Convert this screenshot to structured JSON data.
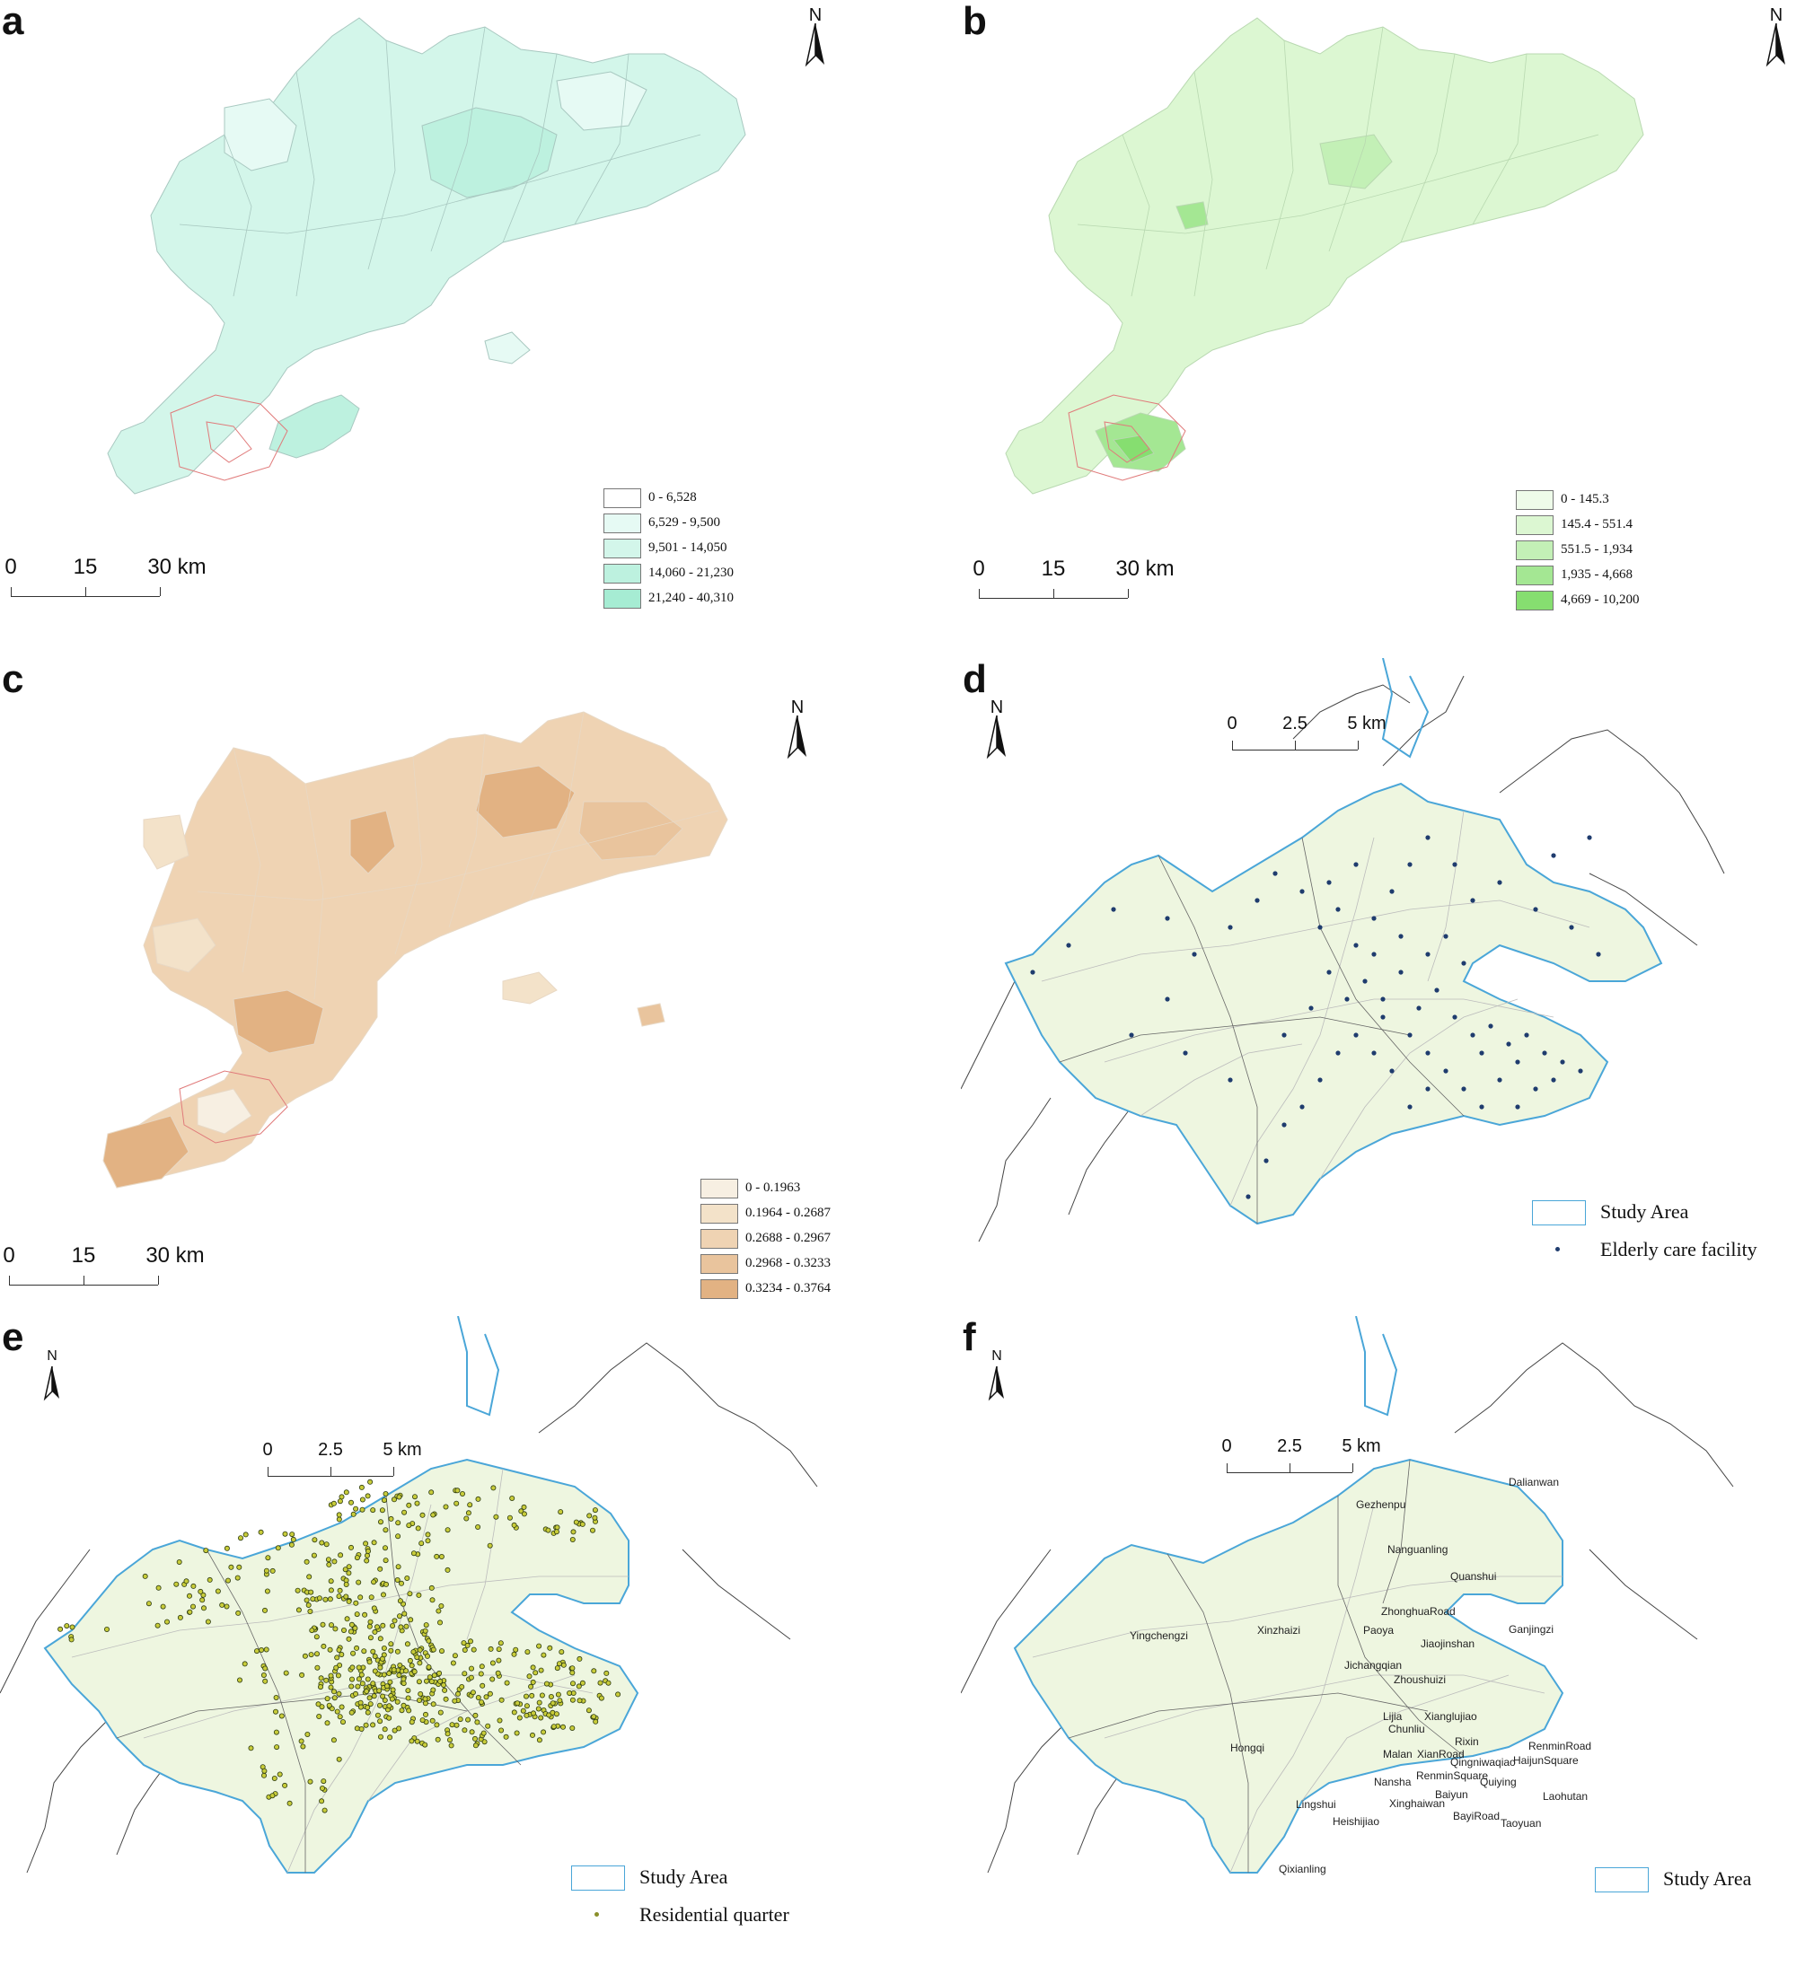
{
  "panels": [
    {
      "letter": "a",
      "north": "N",
      "scale": {
        "labels": [
          "0",
          "15",
          "30 km"
        ]
      },
      "legend": [
        {
          "label": "0 - 6,528",
          "color": "#ffffff"
        },
        {
          "label": "6,529 - 9,500",
          "color": "#e6faf4"
        },
        {
          "label": "9,501 - 14,050",
          "color": "#d3f6ea"
        },
        {
          "label": "14,060 - 21,230",
          "color": "#bdf1df"
        },
        {
          "label": "21,240 - 40,310",
          "color": "#a6ecd3"
        }
      ]
    },
    {
      "letter": "b",
      "north": "N",
      "scale": {
        "labels": [
          "0",
          "15",
          "30 km"
        ]
      },
      "legend": [
        {
          "label": "0 - 145.3",
          "color": "#eefbe9"
        },
        {
          "label": "145.4 - 551.4",
          "color": "#dcf7d2"
        },
        {
          "label": "551.5 - 1,934",
          "color": "#c3f0b6"
        },
        {
          "label": "1,935 - 4,668",
          "color": "#a4e793"
        },
        {
          "label": "4,669 - 10,200",
          "color": "#86de70"
        }
      ]
    },
    {
      "letter": "c",
      "north": "N",
      "scale": {
        "labels": [
          "0",
          "15",
          "30 km"
        ]
      },
      "legend": [
        {
          "label": "0 - 0.1963",
          "color": "#f7efe2"
        },
        {
          "label": "0.1964 - 0.2687",
          "color": "#f3e2c9"
        },
        {
          "label": "0.2688 - 0.2967",
          "color": "#efd3b3"
        },
        {
          "label": "0.2968 - 0.3233",
          "color": "#e9c49d"
        },
        {
          "label": "0.3234 - 0.3764",
          "color": "#e2b283"
        }
      ]
    },
    {
      "letter": "d",
      "north": "N",
      "scale": {
        "labels": [
          "0",
          "2.5",
          "5 km"
        ]
      },
      "legend": [
        {
          "label": "Study Area",
          "kind": "box"
        },
        {
          "label": "Elderly care facility",
          "kind": "dot",
          "color": "#1f3c6e"
        }
      ]
    },
    {
      "letter": "e",
      "north": "N",
      "scale": {
        "labels": [
          "0",
          "2.5",
          "5 km"
        ]
      },
      "legend": [
        {
          "label": "Study Area",
          "kind": "box"
        },
        {
          "label": "Residential quarter",
          "kind": "dot",
          "color": "#8a8f2a"
        }
      ]
    },
    {
      "letter": "f",
      "north": "N",
      "scale": {
        "labels": [
          "0",
          "2.5",
          "5 km"
        ]
      },
      "legend": [
        {
          "label": "Study Area",
          "kind": "box"
        }
      ],
      "places": [
        "Gezhenpu",
        "Dalianwan",
        "Nanguanling",
        "Quanshui",
        "Yingchengzi",
        "ZhonghuaRoad",
        "Paoya",
        "Jiaojinshan",
        "Ganjingzi",
        "Xinzhaizi",
        "Jichangqian",
        "Zhoushuizi",
        "Lijia",
        "Chunliu",
        "Xianglujiao",
        "Rixin",
        "RenminRoad",
        "HaijunSquare",
        "Hongqi",
        "Malan",
        "XianRoad",
        "Qingniwaqiao",
        "Nansha",
        "RenminSquare",
        "Quiying",
        "Laohutan",
        "Baiyun",
        "Xinghaiwan",
        "Lingshui",
        "Heishijiao",
        "BayiRoad",
        "Taoyuan",
        "Qixianling"
      ]
    }
  ]
}
